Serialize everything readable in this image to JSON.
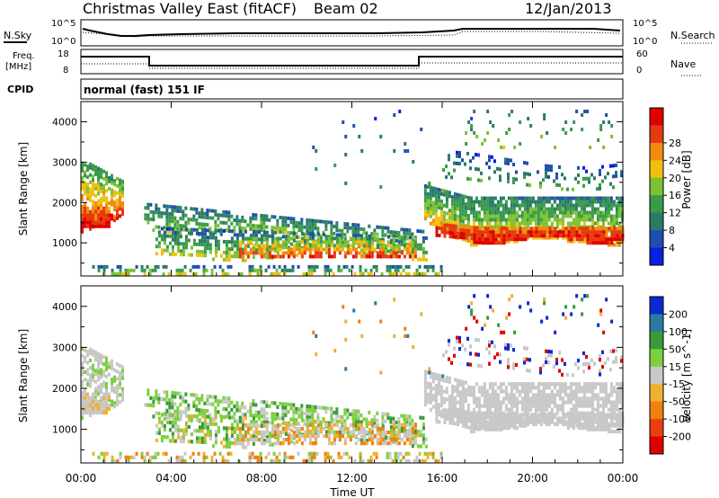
{
  "header": {
    "title": "Christmas Valley East (fitACF)",
    "beam": "Beam 02",
    "date": "12/Jan/2013"
  },
  "noise_panel": {
    "left_label": "N.Sky",
    "right_label": "N.Search",
    "y_ticks_left": [
      "10^5",
      "10^0"
    ],
    "y_ticks_right": [
      "10^5",
      "10^0"
    ]
  },
  "freq_panel": {
    "left_label_top": "Freq.",
    "left_label_bottom": "[MHz]",
    "right_label": "Nave",
    "y_ticks_left": [
      "18",
      "8"
    ],
    "y_ticks_right": [
      "60",
      "0"
    ]
  },
  "cpid": {
    "label": "CPID",
    "mode": "normal (fast) 151 IF"
  },
  "chart_data": [
    {
      "type": "heatmap",
      "name": "Power",
      "ylabel": "Slant Range [km]",
      "y_ticks": [
        1000,
        2000,
        3000,
        4000
      ],
      "ylim": [
        180,
        4500
      ],
      "colorbar": {
        "label": "Power [dB]",
        "ticks": [
          "4",
          "8",
          "12",
          "16",
          "20",
          "24",
          "28"
        ],
        "colors": [
          "#0a1fe0",
          "#1e4fb0",
          "#2a7a6a",
          "#3a9a4a",
          "#7cc233",
          "#f0c010",
          "#f08a10",
          "#e8380f",
          "#e00000"
        ]
      }
    },
    {
      "type": "heatmap",
      "name": "Velocity",
      "ylabel": "Slant Range [km]",
      "y_ticks": [
        1000,
        2000,
        3000,
        4000
      ],
      "ylim": [
        180,
        4500
      ],
      "colorbar": {
        "label": "Velocity [m s^-1]",
        "ticks": [
          "200",
          "100",
          "50",
          "15",
          "-15",
          "-50",
          "-100",
          "-200"
        ],
        "colors": [
          "#0a2ad0",
          "#2a7aa0",
          "#3a9a3a",
          "#7cd040",
          "#c8c8c8",
          "#f0b030",
          "#f08010",
          "#e84010",
          "#e00000"
        ]
      }
    }
  ],
  "x_axis": {
    "label": "Time UT",
    "ticks": [
      "00:00",
      "04:00",
      "08:00",
      "12:00",
      "16:00",
      "20:00",
      "00:00"
    ]
  }
}
